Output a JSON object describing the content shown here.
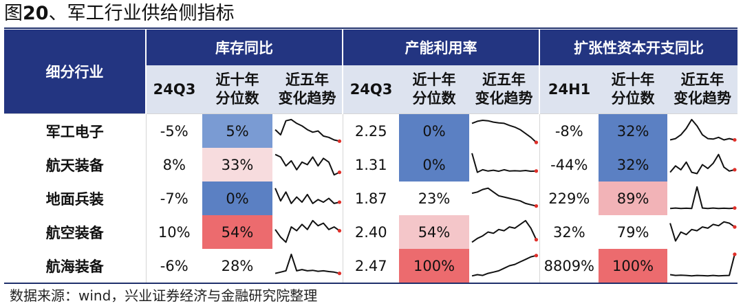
{
  "figure": {
    "title_prefix": "图",
    "title_number": "20",
    "title_rest": "、军工行业供给侧指标"
  },
  "header": {
    "row_label": "细分行业",
    "groups": [
      {
        "label": "库存同比",
        "subs": [
          "24Q3",
          "近十年\n分位数",
          "近五年\n变化趋势"
        ]
      },
      {
        "label": "产能利用率",
        "subs": [
          "24Q3",
          "近十年\n分位数",
          "近五年\n变化趋势"
        ]
      },
      {
        "label": "扩张性资本开支同比",
        "subs": [
          "24H1",
          "近十年\n分位数",
          "近五年\n变化趋势"
        ]
      }
    ]
  },
  "rows": [
    {
      "name": "军工电子",
      "inventory": {
        "value": "-5%",
        "pct": "5%",
        "pct_color": "#7a9bd3",
        "trend": [
          0.55,
          0.35,
          0.9,
          0.95,
          0.8,
          0.7,
          0.55,
          0.45,
          0.5,
          0.3,
          0.25,
          0.15,
          0.1
        ]
      },
      "capacity": {
        "value": "2.25",
        "pct": "0%",
        "pct_color": "#5b80c3",
        "trend": [
          0.8,
          0.88,
          0.92,
          0.9,
          0.85,
          0.82,
          0.8,
          0.72,
          0.65,
          0.55,
          0.4,
          0.25,
          0.05
        ]
      },
      "capex": {
        "value": "-8%",
        "pct": "32%",
        "pct_color": "#5b80c3",
        "trend": [
          0.15,
          0.2,
          0.35,
          0.6,
          0.95,
          0.7,
          0.35,
          0.2,
          0.18,
          0.25,
          0.15,
          0.2,
          0.15
        ]
      }
    },
    {
      "name": "航天装备",
      "inventory": {
        "value": "8%",
        "pct": "33%",
        "pct_color": "#f7dcde",
        "trend": [
          0.9,
          0.8,
          0.45,
          0.65,
          0.3,
          0.6,
          0.5,
          0.8,
          0.45,
          0.75,
          0.6,
          0.1,
          0.2
        ]
      },
      "capacity": {
        "value": "1.31",
        "pct": "0%",
        "pct_color": "#5b80c3",
        "trend": [
          0.95,
          0.2,
          0.3,
          0.25,
          0.28,
          0.24,
          0.3,
          0.25,
          0.26,
          0.25,
          0.27,
          0.24,
          0.25
        ]
      },
      "capex": {
        "value": "-44%",
        "pct": "32%",
        "pct_color": "#5b80c3",
        "trend": [
          0.2,
          0.45,
          0.3,
          0.6,
          0.2,
          0.15,
          0.5,
          0.35,
          0.55,
          0.9,
          0.4,
          0.25,
          0.3
        ]
      }
    },
    {
      "name": "地面兵装",
      "inventory": {
        "value": "-7%",
        "pct": "0%",
        "pct_color": "#5b80c3",
        "trend": [
          0.9,
          0.4,
          0.75,
          0.3,
          0.55,
          0.35,
          0.65,
          0.3,
          0.45,
          0.35,
          0.5,
          0.3,
          0.35
        ]
      },
      "capacity": {
        "value": "1.87",
        "pct": "23%",
        "pct_color": "#ffffff",
        "trend": [
          0.7,
          0.75,
          0.85,
          0.9,
          0.75,
          0.6,
          0.55,
          0.5,
          0.45,
          0.4,
          0.3,
          0.25,
          0.2
        ]
      },
      "capex": {
        "value": "229%",
        "pct": "89%",
        "pct_color": "#f2b3b7",
        "trend": [
          0.1,
          0.12,
          0.1,
          0.11,
          0.1,
          0.95,
          0.12,
          0.1,
          0.12,
          0.1,
          0.11,
          0.1,
          0.12
        ]
      }
    },
    {
      "name": "航空装备",
      "inventory": {
        "value": "10%",
        "pct": "54%",
        "pct_color": "#ec6b6e",
        "trend": [
          0.6,
          0.3,
          0.1,
          0.7,
          0.55,
          0.8,
          0.6,
          0.95,
          0.75,
          0.85,
          0.6,
          0.7,
          0.55
        ]
      },
      "capacity": {
        "value": "2.40",
        "pct": "54%",
        "pct_color": "#f4c6c9",
        "trend": [
          0.1,
          0.25,
          0.35,
          0.5,
          0.45,
          0.6,
          0.55,
          0.7,
          0.65,
          0.8,
          0.95,
          0.65,
          0.2
        ]
      },
      "capex": {
        "value": "32%",
        "pct": "79%",
        "pct_color": "#ffffff",
        "trend": [
          0.85,
          0.15,
          0.5,
          0.4,
          0.6,
          0.55,
          0.7,
          0.65,
          0.8,
          0.75,
          0.9,
          0.85,
          0.7
        ]
      }
    },
    {
      "name": "航海装备",
      "inventory": {
        "value": "-6%",
        "pct": "28%",
        "pct_color": "#ffffff",
        "trend": [
          0.2,
          0.25,
          0.3,
          0.95,
          0.3,
          0.35,
          0.3,
          0.32,
          0.28,
          0.3,
          0.27,
          0.25,
          0.2
        ]
      },
      "capacity": {
        "value": "2.47",
        "pct": "100%",
        "pct_color": "#ec6b6e",
        "trend": [
          0.1,
          0.15,
          0.12,
          0.2,
          0.25,
          0.3,
          0.4,
          0.5,
          0.55,
          0.65,
          0.75,
          0.85,
          0.9
        ]
      },
      "capex": {
        "value": "8809%",
        "pct": "100%",
        "pct_color": "#ec6b6e",
        "trend": [
          0.15,
          0.12,
          0.13,
          0.12,
          0.1,
          0.12,
          0.11,
          0.1,
          0.12,
          0.1,
          0.11,
          0.12,
          0.95
        ]
      }
    }
  ],
  "source": "数据来源：wind，兴业证券经济与金融研究院整理"
}
